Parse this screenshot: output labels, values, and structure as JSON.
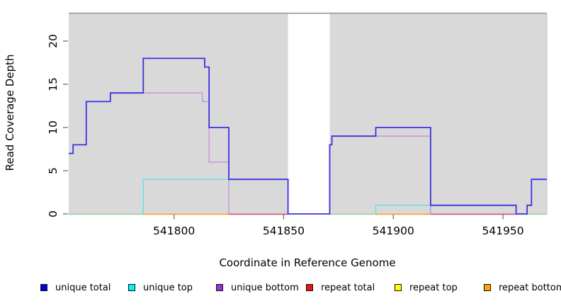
{
  "chart_data": {
    "type": "line",
    "subtype": "step-coverage",
    "title": "",
    "xlabel": "Coordinate in Reference Genome",
    "ylabel": "Read Coverage Depth",
    "xlim": [
      541752,
      541970
    ],
    "ylim": [
      0,
      23.4
    ],
    "x_ticks": [
      541800,
      541850,
      541900,
      541950
    ],
    "y_ticks": [
      0,
      5,
      10,
      15,
      20
    ],
    "grid": false,
    "legend_position": "bottom",
    "plot_background": "#d9d9d9",
    "masked_region": {
      "start": 541852,
      "end": 541871,
      "fill": "#ffffff",
      "top_line_color": "#999999"
    },
    "series": [
      {
        "name": "unique total",
        "color": "#3b33e2",
        "width": 1.8,
        "segments": [
          [
            541752,
            541754,
            7
          ],
          [
            541754,
            541760,
            8
          ],
          [
            541760,
            541771,
            13
          ],
          [
            541771,
            541786,
            14
          ],
          [
            541786,
            541814,
            18
          ],
          [
            541814,
            541816,
            17
          ],
          [
            541816,
            541825,
            10
          ],
          [
            541825,
            541852,
            4
          ],
          [
            541852,
            541871,
            0
          ],
          [
            541871,
            541872,
            8
          ],
          [
            541872,
            541892,
            9
          ],
          [
            541892,
            541917,
            10
          ],
          [
            541917,
            541956,
            1
          ],
          [
            541956,
            541961,
            0
          ],
          [
            541961,
            541963,
            1
          ],
          [
            541963,
            541970,
            4
          ]
        ]
      },
      {
        "name": "unique top",
        "color": "#63dfe6",
        "width": 1.4,
        "segments": [
          [
            541752,
            541786,
            0
          ],
          [
            541786,
            541852,
            4
          ],
          [
            541852,
            541892,
            0
          ],
          [
            541892,
            541917,
            1
          ],
          [
            541917,
            541970,
            0
          ]
        ]
      },
      {
        "name": "unique bottom",
        "color": "#c48fe2",
        "width": 1.3,
        "segments": [
          [
            541752,
            541754,
            7
          ],
          [
            541754,
            541760,
            8
          ],
          [
            541760,
            541771,
            13
          ],
          [
            541771,
            541813,
            14
          ],
          [
            541813,
            541816,
            13
          ],
          [
            541816,
            541825,
            6
          ],
          [
            541825,
            541871,
            0
          ],
          [
            541871,
            541872,
            8
          ],
          [
            541872,
            541917,
            9
          ],
          [
            541917,
            541970,
            0
          ]
        ]
      },
      {
        "name": "repeat total",
        "color": "#d6536f",
        "width": 1.4,
        "segments": [
          [
            541752,
            541970,
            0
          ]
        ]
      },
      {
        "name": "repeat top",
        "color": "#ffff00",
        "width": 1.4,
        "segments": [
          [
            541752,
            541970,
            0
          ]
        ]
      },
      {
        "name": "repeat bottom",
        "color": "#ff9f1f",
        "width": 1.4,
        "segments": [
          [
            541752,
            541970,
            0
          ]
        ]
      }
    ],
    "baseline_overlap_segments": [
      {
        "start": 541752,
        "end": 541786,
        "color": "#97d6a0"
      },
      {
        "start": 541786,
        "end": 541825,
        "color": "#ff9f1f"
      },
      {
        "start": 541825,
        "end": 541852,
        "color": "#d6536f"
      },
      {
        "start": 541871,
        "end": 541892,
        "color": "#97d6a0"
      },
      {
        "start": 541892,
        "end": 541917,
        "color": "#ff9f1f"
      },
      {
        "start": 541917,
        "end": 541956,
        "color": "#d6536f"
      },
      {
        "start": 541956,
        "end": 541970,
        "color": "#97d6a0"
      }
    ]
  },
  "legend": {
    "items": [
      {
        "label": "unique total",
        "color": "#0000e0"
      },
      {
        "label": "unique top",
        "color": "#00f5ff"
      },
      {
        "label": "unique bottom",
        "color": "#9b30d9"
      },
      {
        "label": "repeat total",
        "color": "#ee1111"
      },
      {
        "label": "repeat top",
        "color": "#ffff00"
      },
      {
        "label": "repeat bottom",
        "color": "#ffa500"
      }
    ]
  }
}
